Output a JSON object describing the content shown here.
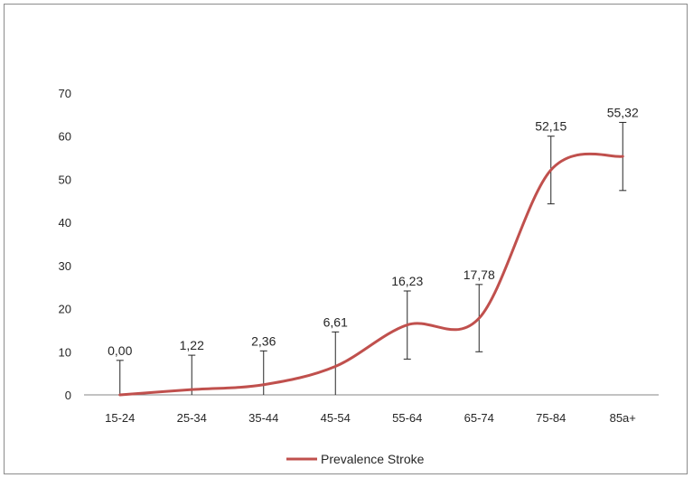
{
  "chart_data": {
    "type": "line",
    "title": "",
    "xlabel": "",
    "ylabel": "",
    "categories": [
      "15-24",
      "25-34",
      "35-44",
      "45-54",
      "55-64",
      "65-74",
      "75-84",
      "85a+"
    ],
    "yticks": [
      "0",
      "10",
      "20",
      "30",
      "40",
      "50",
      "60",
      "70"
    ],
    "ylim": [
      0,
      70
    ],
    "grid": false,
    "legend": "bottom-center",
    "series": [
      {
        "name": "Prevalence Stroke",
        "color": "#c0504d",
        "values": [
          0.0,
          1.22,
          2.36,
          6.61,
          16.23,
          17.78,
          52.15,
          55.32
        ],
        "labels": [
          "0,00",
          "1,22",
          "2,36",
          "6,61",
          "16,23",
          "17,78",
          "52,15",
          "55,32"
        ],
        "error_upper": [
          8.0,
          9.2,
          10.2,
          14.6,
          24.1,
          25.6,
          60.0,
          63.2
        ],
        "error_lower": [
          0.0,
          0.0,
          0.0,
          0.0,
          8.3,
          10.0,
          44.3,
          47.4
        ]
      }
    ]
  }
}
